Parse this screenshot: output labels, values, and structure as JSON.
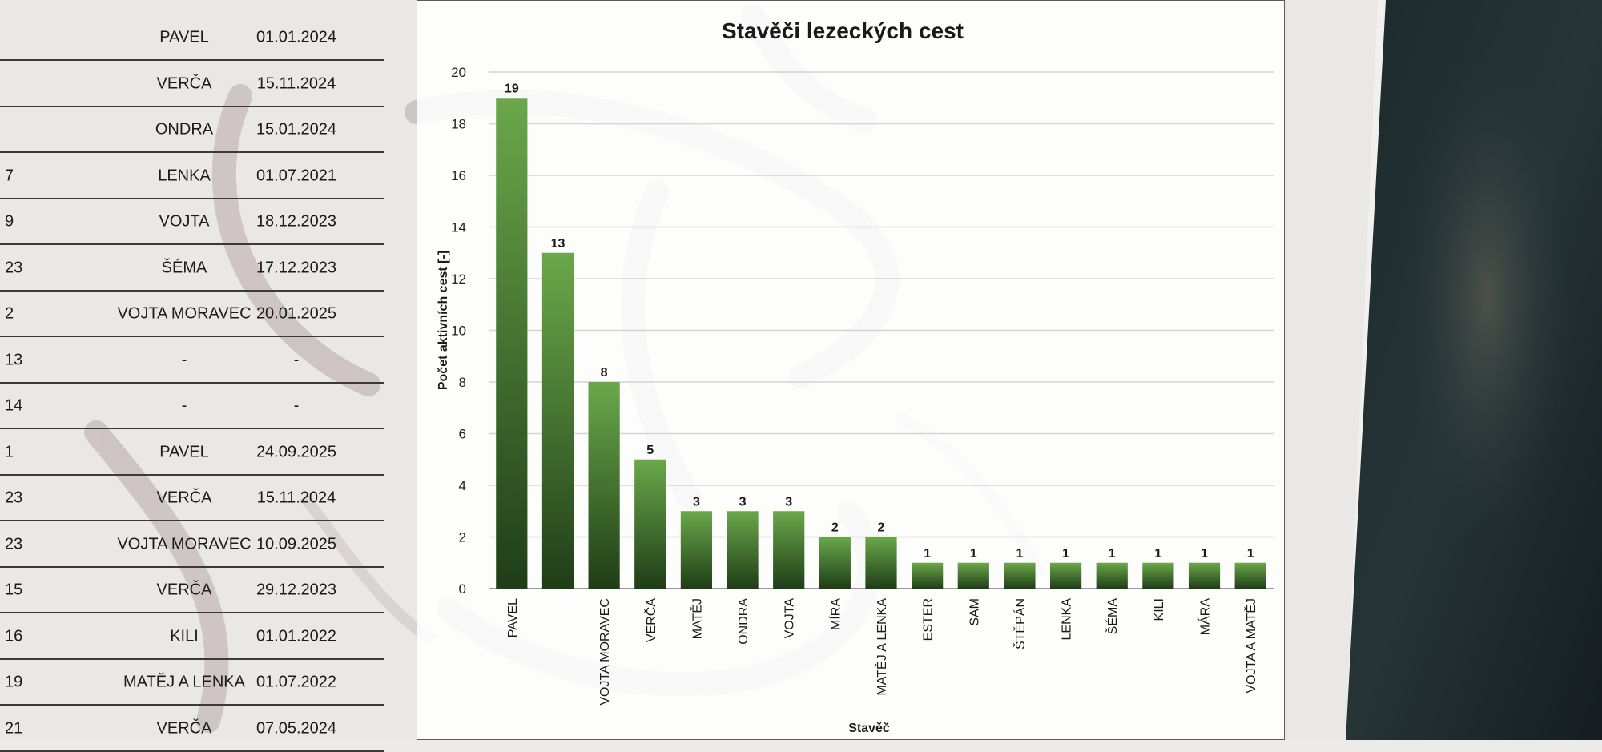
{
  "table": {
    "rows": [
      {
        "num": "",
        "name": "PAVEL",
        "date": "01.01.2024"
      },
      {
        "num": "",
        "name": "VERČA",
        "date": "15.11.2024"
      },
      {
        "num": "",
        "name": "ONDRA",
        "date": "15.01.2024"
      },
      {
        "num": "7",
        "name": "LENKA",
        "date": "01.07.2021"
      },
      {
        "num": "9",
        "name": "VOJTA",
        "date": "18.12.2023"
      },
      {
        "num": "23",
        "name": "ŠÉMA",
        "date": "17.12.2023"
      },
      {
        "num": "2",
        "name": "VOJTA MORAVEC",
        "date": "20.01.2025"
      },
      {
        "num": "13",
        "name": "-",
        "date": "-"
      },
      {
        "num": "14",
        "name": "-",
        "date": "-"
      },
      {
        "num": "1",
        "name": "PAVEL",
        "date": "24.09.2025"
      },
      {
        "num": "23",
        "name": "VERČA",
        "date": "15.11.2024"
      },
      {
        "num": "23",
        "name": "VOJTA MORAVEC",
        "date": "10.09.2025"
      },
      {
        "num": "15",
        "name": "VERČA",
        "date": "29.12.2023"
      },
      {
        "num": "16",
        "name": "KILI",
        "date": "01.01.2022"
      },
      {
        "num": "19",
        "name": "MATĚJ A LENKA",
        "date": "01.07.2022"
      },
      {
        "num": "21",
        "name": "VERČA",
        "date": "07.05.2024"
      }
    ]
  },
  "chart_data": {
    "type": "bar",
    "title": "Stavěči lezeckých cest",
    "xlabel": "Stavěč",
    "ylabel": "Počet aktivních cest [-]",
    "ylim": [
      0,
      20
    ],
    "yticks": [
      0,
      2,
      4,
      6,
      8,
      10,
      12,
      14,
      16,
      18,
      20
    ],
    "grid": true,
    "categories": [
      "PAVEL",
      "",
      "VOJTA MORAVEC",
      "VERČA",
      "MATĚJ",
      "ONDRA",
      "VOJTA",
      "MÍRA",
      "MATĚJ A LENKA",
      "ESTER",
      "SAM",
      "ŠTĚPÁN",
      "LENKA",
      "ŠÉMA",
      "KILI",
      "MÁRA",
      "VOJTA A MATĚJ"
    ],
    "values": [
      19,
      13,
      8,
      5,
      3,
      3,
      3,
      2,
      2,
      1,
      1,
      1,
      1,
      1,
      1,
      1,
      1
    ],
    "colors": {
      "bar_top": "#6aa84a",
      "bar_bottom": "#1f3d17",
      "grid": "#d4d4d4",
      "frame": "#5a5a5a"
    }
  }
}
